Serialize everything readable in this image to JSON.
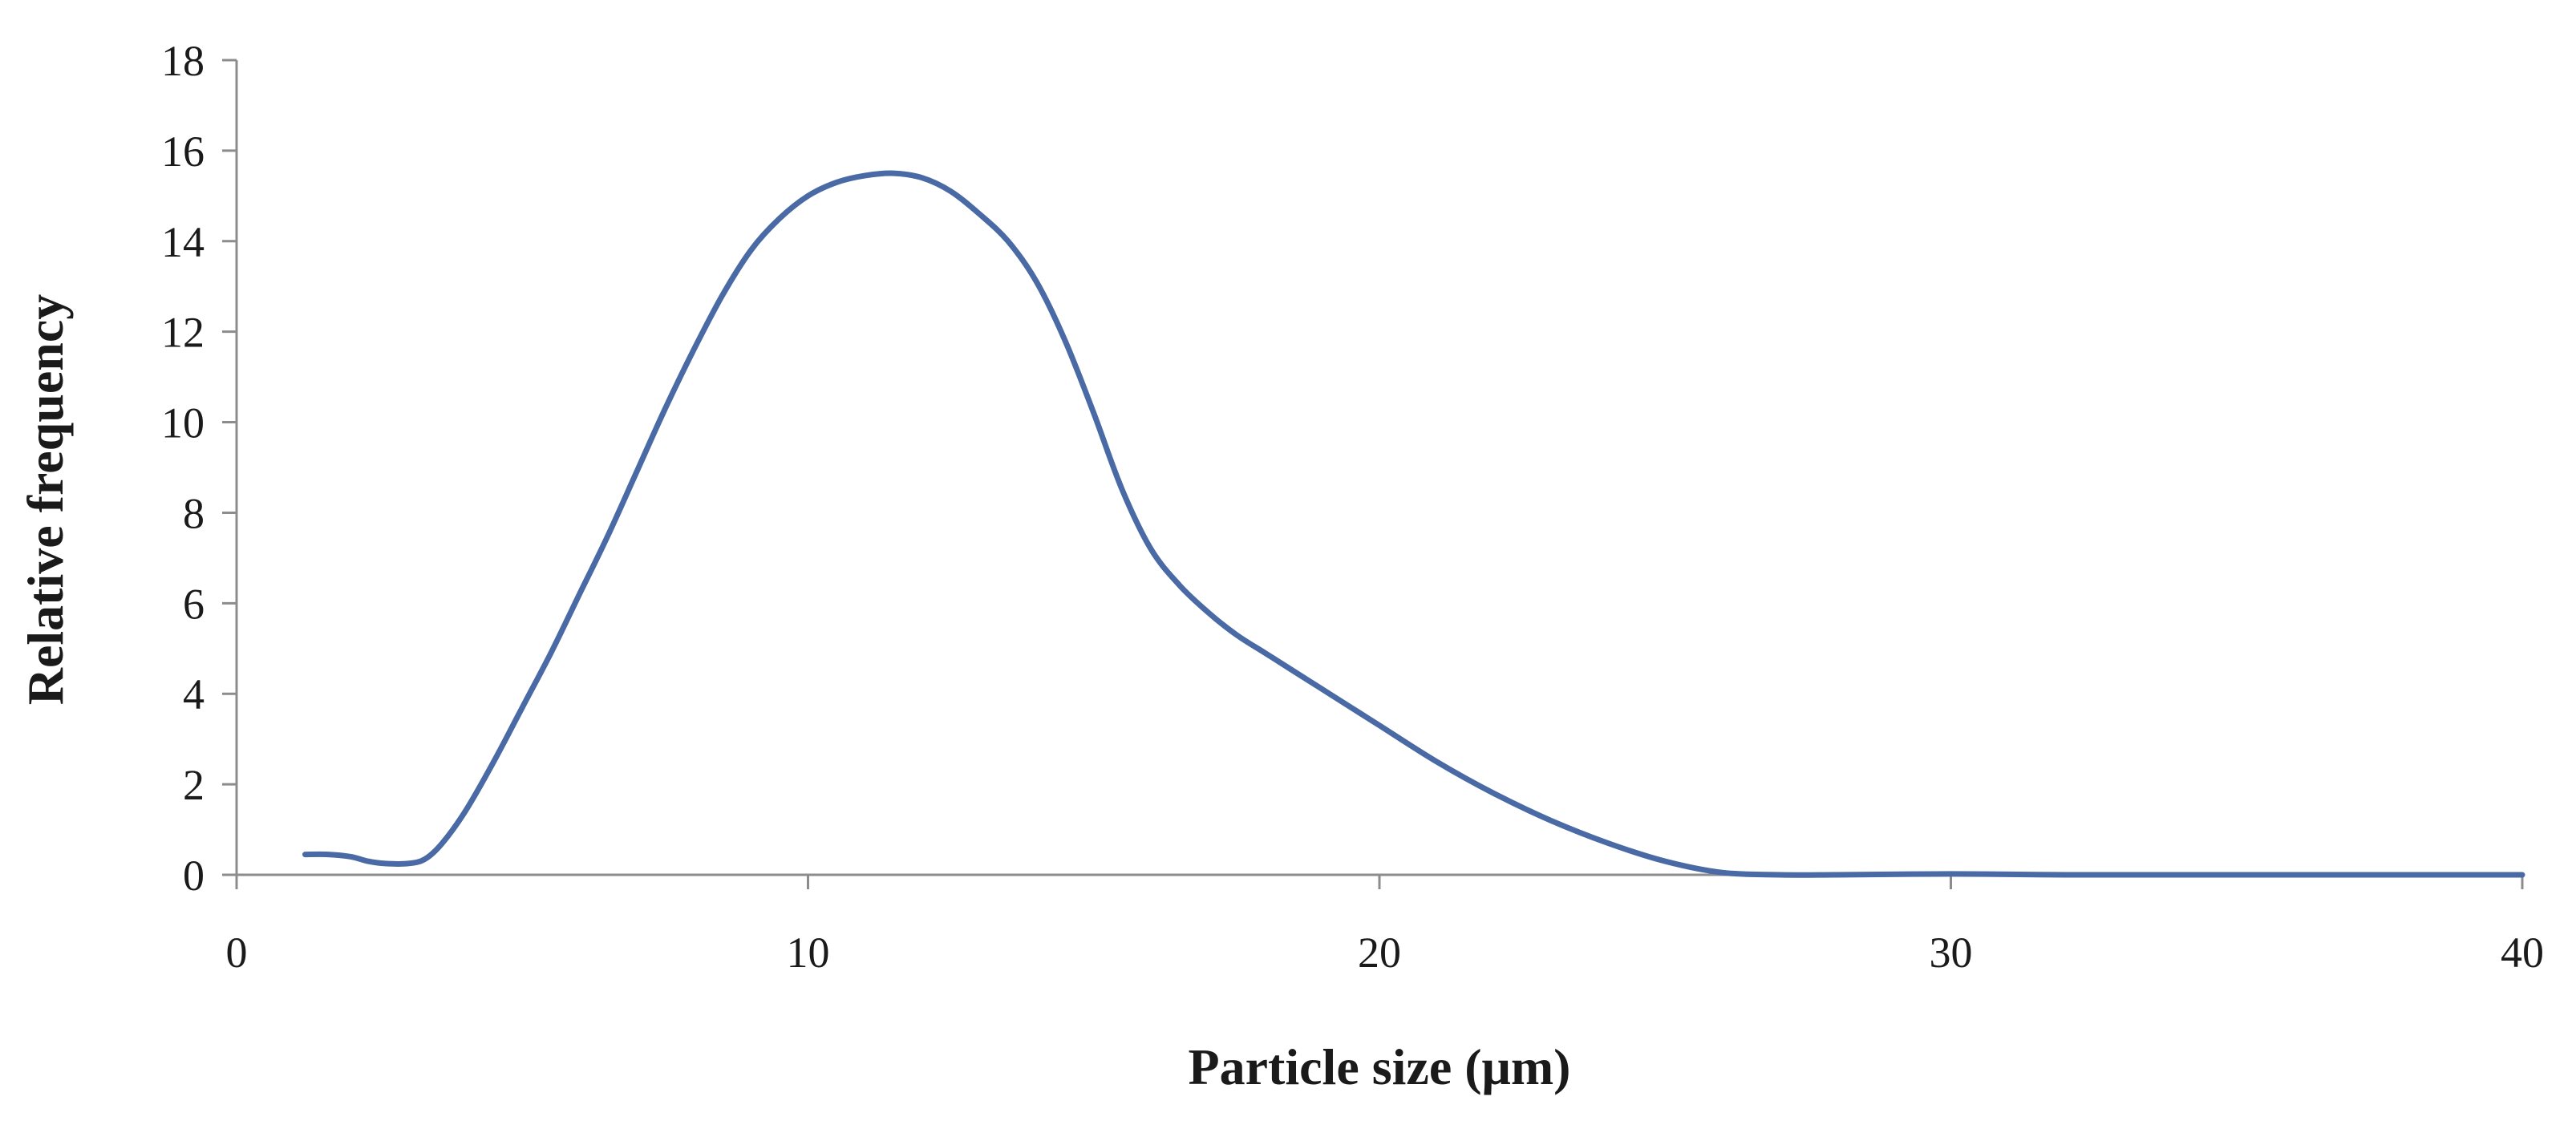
{
  "chart_data": {
    "type": "line",
    "title": "",
    "xlabel": "Particle size (μm)",
    "ylabel": "Relative frequency",
    "xlim": [
      0,
      40
    ],
    "ylim": [
      0,
      18
    ],
    "xticks": [
      0,
      10,
      20,
      30,
      40
    ],
    "yticks": [
      0,
      2,
      4,
      6,
      8,
      10,
      12,
      14,
      16,
      18
    ],
    "grid": false,
    "legend": "none",
    "series": [
      {
        "color": "#4a6aa5",
        "x": [
          1.2,
          1.6,
          2.0,
          2.3,
          2.6,
          3.0,
          3.3,
          3.6,
          4.0,
          4.5,
          5.0,
          5.5,
          6.0,
          6.5,
          7.0,
          7.5,
          8.0,
          8.5,
          9.0,
          9.5,
          10.0,
          10.5,
          11.0,
          11.5,
          12.0,
          12.5,
          13.0,
          13.5,
          14.0,
          14.5,
          15.0,
          15.5,
          16.0,
          16.5,
          17.0,
          17.5,
          18.0,
          18.5,
          19.0,
          19.5,
          20.0,
          21.0,
          22.0,
          23.0,
          24.0,
          25.0,
          26.0,
          27.0,
          28.0,
          30.0,
          32.0,
          35.0,
          40.0
        ],
        "y": [
          0.45,
          0.45,
          0.4,
          0.3,
          0.25,
          0.25,
          0.35,
          0.7,
          1.4,
          2.5,
          3.7,
          4.9,
          6.2,
          7.5,
          8.9,
          10.3,
          11.6,
          12.8,
          13.8,
          14.5,
          15.0,
          15.3,
          15.45,
          15.5,
          15.4,
          15.1,
          14.6,
          14.0,
          13.1,
          11.8,
          10.2,
          8.5,
          7.2,
          6.4,
          5.8,
          5.3,
          4.9,
          4.5,
          4.1,
          3.7,
          3.3,
          2.5,
          1.8,
          1.2,
          0.7,
          0.3,
          0.05,
          0.0,
          0.0,
          0.02,
          0.0,
          0.0,
          0.0
        ]
      }
    ]
  }
}
